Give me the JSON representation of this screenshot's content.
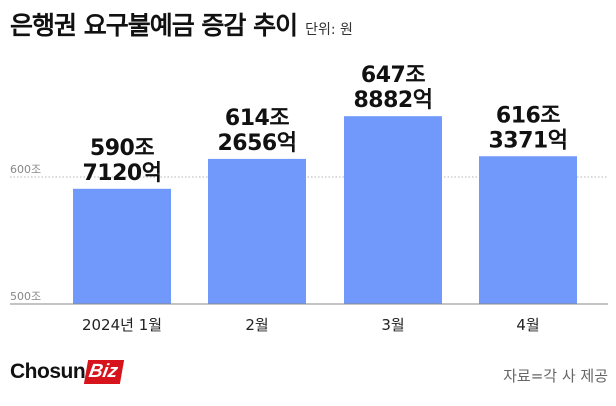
{
  "title": "은행권 요구불예금 증감 추이",
  "unit_label": "단위: 원",
  "logo": {
    "main": "Chosun",
    "accent": "Biz"
  },
  "source": "자료=각 사 제공",
  "colors": {
    "bar": "#7099fb",
    "background": "#ffffff",
    "logo_accent": "#d7131b",
    "text": "#111111"
  },
  "chart_data": {
    "type": "bar",
    "categories": [
      "2024년 1월",
      "2월",
      "3월",
      "4월"
    ],
    "values": [
      5907120,
      6142656,
      6478882,
      6163371
    ],
    "value_unit": "억 원",
    "data_labels": [
      [
        "590조",
        "7120억"
      ],
      [
        "614조",
        "2656억"
      ],
      [
        "647조",
        "8882억"
      ],
      [
        "616조",
        "3371억"
      ]
    ],
    "yticks": [
      {
        "value": 5000000,
        "label": "500조"
      },
      {
        "value": 6000000,
        "label": "600조"
      }
    ],
    "ylim": [
      5000000,
      6600000
    ],
    "grid": true,
    "legend": "none"
  }
}
